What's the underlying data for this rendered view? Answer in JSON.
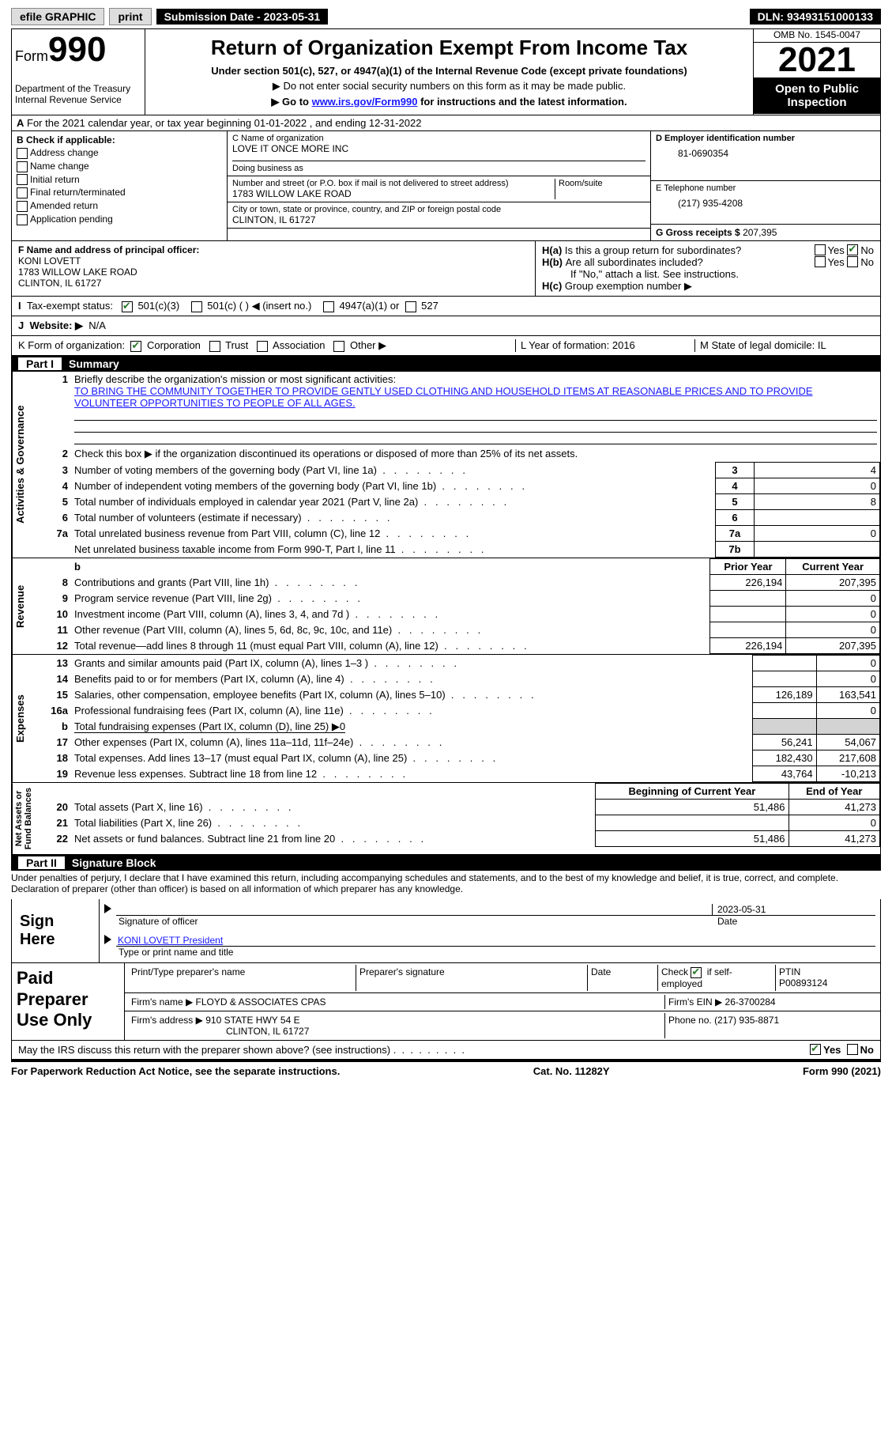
{
  "topbar": {
    "efile": "efile GRAPHIC",
    "print": "print",
    "subdate_lbl": "Submission Date - 2023-05-31",
    "dln": "DLN: 93493151000133"
  },
  "header": {
    "form_lbl": "Form",
    "formno": "990",
    "dept": "Department of the Treasury\nInternal Revenue Service",
    "title": "Return of Organization Exempt From Income Tax",
    "sub": "Under section 501(c), 527, or 4947(a)(1) of the Internal Revenue Code (except private foundations)",
    "arrow1": "Do not enter social security numbers on this form as it may be made public.",
    "arrow2_pre": "Go to ",
    "arrow2_link": "www.irs.gov/Form990",
    "arrow2_post": " for instructions and the latest information.",
    "omb": "OMB No. 1545-0047",
    "year": "2021",
    "open": "Open to Public\nInspection"
  },
  "A": "For the 2021 calendar year, or tax year beginning 01-01-2022    , and ending 12-31-2022",
  "B": {
    "hdr": "B Check if applicable:",
    "opts": [
      "Address change",
      "Name change",
      "Initial return",
      "Final return/terminated",
      "Amended return",
      "Application pending"
    ]
  },
  "C": {
    "name_lbl": "C Name of organization",
    "name": "LOVE IT ONCE MORE INC",
    "dba_lbl": "Doing business as",
    "street_lbl": "Number and street (or P.O. box if mail is not delivered to street address)",
    "room_lbl": "Room/suite",
    "street": "1783 WILLOW LAKE ROAD",
    "city_lbl": "City or town, state or province, country, and ZIP or foreign postal code",
    "city": "CLINTON, IL  61727"
  },
  "D": {
    "lbl": "D Employer identification number",
    "val": "81-0690354"
  },
  "E": {
    "lbl": "E Telephone number",
    "val": "(217) 935-4208"
  },
  "G": {
    "lbl": "G Gross receipts $",
    "val": "207,395"
  },
  "F": {
    "lbl": "F  Name and address of principal officer:",
    "name": "KONI LOVETT",
    "addr1": "1783 WILLOW LAKE ROAD",
    "addr2": "CLINTON, IL  61727"
  },
  "H": {
    "a": "Is this a group return for subordinates?",
    "b": "Are all subordinates included?",
    "b2": "If \"No,\" attach a list. See instructions.",
    "c": "Group exemption number ▶",
    "yes": "Yes",
    "no": "No"
  },
  "I": {
    "lbl": "Tax-exempt status:",
    "o1": "501(c)(3)",
    "o2": "501(c) (  ) ◀ (insert no.)",
    "o3": "4947(a)(1) or",
    "o4": "527"
  },
  "J": {
    "lbl": "Website: ▶",
    "val": "N/A"
  },
  "K": {
    "lbl": "K Form of organization:",
    "o1": "Corporation",
    "o2": "Trust",
    "o3": "Association",
    "o4": "Other ▶",
    "L": "L Year of formation: 2016",
    "M": "M State of legal domicile: IL"
  },
  "part1": {
    "hdr": "Summary",
    "partno": "Part I",
    "l1": "Briefly describe the organization's mission or most significant activities:",
    "mission": "TO BRING THE COMMUNITY TOGETHER TO PROVIDE GENTLY USED CLOTHING AND HOUSEHOLD ITEMS AT REASONABLE PRICES AND TO PROVIDE VOLUNTEER OPPORTUNITIES TO PEOPLE OF ALL AGES.",
    "l2": "Check this box ▶    if the organization discontinued its operations or disposed of more than 25% of its net assets.",
    "rows": [
      {
        "n": "3",
        "t": "Number of voting members of the governing body (Part VI, line 1a)",
        "box": "3",
        "v": "4"
      },
      {
        "n": "4",
        "t": "Number of independent voting members of the governing body (Part VI, line 1b)",
        "box": "4",
        "v": "0"
      },
      {
        "n": "5",
        "t": "Total number of individuals employed in calendar year 2021 (Part V, line 2a)",
        "box": "5",
        "v": "8"
      },
      {
        "n": "6",
        "t": "Total number of volunteers (estimate if necessary)",
        "box": "6",
        "v": ""
      },
      {
        "n": "7a",
        "t": "Total unrelated business revenue from Part VIII, column (C), line 12",
        "box": "7a",
        "v": "0"
      },
      {
        "n": "",
        "t": "Net unrelated business taxable income from Form 990-T, Part I, line 11",
        "box": "7b",
        "v": ""
      }
    ],
    "side1": "Activities & Governance",
    "side2": "Revenue",
    "side3": "Expenses",
    "side4": "Net Assets or\nFund Balances",
    "colph": "Prior Year",
    "colcy": "Current Year",
    "rev": [
      {
        "n": "8",
        "t": "Contributions and grants (Part VIII, line 1h)",
        "p": "226,194",
        "c": "207,395"
      },
      {
        "n": "9",
        "t": "Program service revenue (Part VIII, line 2g)",
        "p": "",
        "c": "0"
      },
      {
        "n": "10",
        "t": "Investment income (Part VIII, column (A), lines 3, 4, and 7d )",
        "p": "",
        "c": "0"
      },
      {
        "n": "11",
        "t": "Other revenue (Part VIII, column (A), lines 5, 6d, 8c, 9c, 10c, and 11e)",
        "p": "",
        "c": "0"
      },
      {
        "n": "12",
        "t": "Total revenue—add lines 8 through 11 (must equal Part VIII, column (A), line 12)",
        "p": "226,194",
        "c": "207,395"
      }
    ],
    "exp": [
      {
        "n": "13",
        "t": "Grants and similar amounts paid (Part IX, column (A), lines 1–3 )",
        "p": "",
        "c": "0"
      },
      {
        "n": "14",
        "t": "Benefits paid to or for members (Part IX, column (A), line 4)",
        "p": "",
        "c": "0"
      },
      {
        "n": "15",
        "t": "Salaries, other compensation, employee benefits (Part IX, column (A), lines 5–10)",
        "p": "126,189",
        "c": "163,541"
      },
      {
        "n": "16a",
        "t": "Professional fundraising fees (Part IX, column (A), line 11e)",
        "p": "",
        "c": "0"
      },
      {
        "n": "b",
        "t": "Total fundraising expenses (Part IX, column (D), line 25) ▶0",
        "p": "GREY",
        "c": "GREY"
      },
      {
        "n": "17",
        "t": "Other expenses (Part IX, column (A), lines 11a–11d, 11f–24e)",
        "p": "56,241",
        "c": "54,067"
      },
      {
        "n": "18",
        "t": "Total expenses. Add lines 13–17 (must equal Part IX, column (A), line 25)",
        "p": "182,430",
        "c": "217,608"
      },
      {
        "n": "19",
        "t": "Revenue less expenses. Subtract line 18 from line 12",
        "p": "43,764",
        "c": "-10,213"
      }
    ],
    "colbeg": "Beginning of Current Year",
    "colend": "End of Year",
    "net": [
      {
        "n": "20",
        "t": "Total assets (Part X, line 16)",
        "p": "51,486",
        "c": "41,273"
      },
      {
        "n": "21",
        "t": "Total liabilities (Part X, line 26)",
        "p": "",
        "c": "0"
      },
      {
        "n": "22",
        "t": "Net assets or fund balances. Subtract line 21 from line 20",
        "p": "51,486",
        "c": "41,273"
      }
    ]
  },
  "part2": {
    "partno": "Part II",
    "hdr": "Signature Block",
    "penalty": "Under penalties of perjury, I declare that I have examined this return, including accompanying schedules and statements, and to the best of my knowledge and belief, it is true, correct, and complete. Declaration of preparer (other than officer) is based on all information of which preparer has any knowledge.",
    "signhere": "Sign Here",
    "sigoff": "Signature of officer",
    "date": "Date",
    "datev": "2023-05-31",
    "typed": "KONI LOVETT President",
    "typed_lbl": "Type or print name and title",
    "paidhdr": "Paid Preparer Use Only",
    "pname_lbl": "Print/Type preparer's name",
    "psig_lbl": "Preparer's signature",
    "pdate_lbl": "Date",
    "check_lbl": "Check       if self-employed",
    "ptin_lbl": "PTIN",
    "ptin": "P00893124",
    "firm_lbl": "Firm's name    ▶",
    "firm": "FLOYD & ASSOCIATES CPAS",
    "firmein_lbl": "Firm's EIN ▶",
    "firmein": "26-3700284",
    "firmaddr_lbl": "Firm's address ▶",
    "firmaddr": "910 STATE HWY 54 E",
    "firmaddr2": "CLINTON, IL  61727",
    "phone_lbl": "Phone no.",
    "phone": "(217) 935-8871",
    "discuss": "May the IRS discuss this return with the preparer shown above? (see instructions)"
  },
  "footer": {
    "left": "For Paperwork Reduction Act Notice, see the separate instructions.",
    "mid": "Cat. No. 11282Y",
    "right": "Form 990 (2021)"
  }
}
